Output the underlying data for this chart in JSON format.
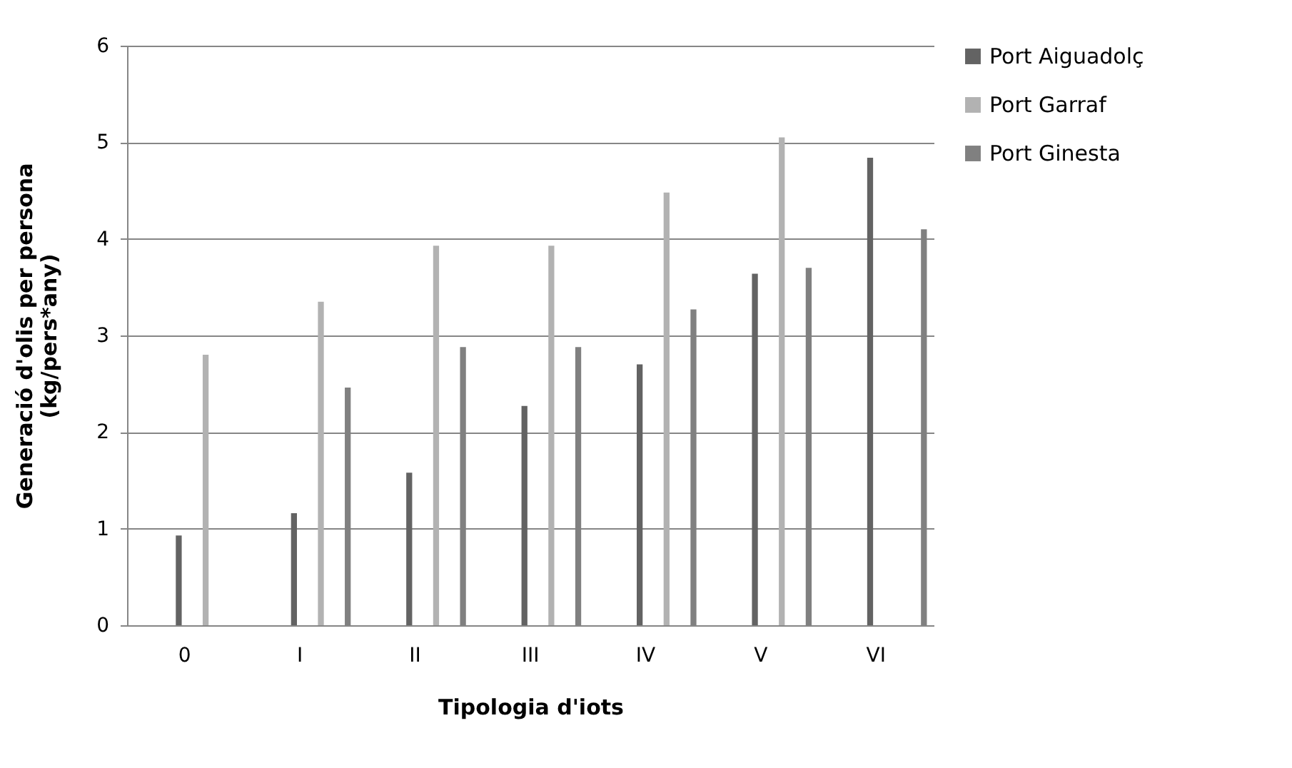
{
  "chart_data": {
    "type": "bar",
    "xlabel": "Tipologia d'iots",
    "ylabel": "Generació d'olis per persona\n(kg/pers*any)",
    "categories": [
      "0",
      "I",
      "II",
      "III",
      "IV",
      "V",
      "VI"
    ],
    "series": [
      {
        "name": "Port Aiguadolç",
        "color": "#636363",
        "values": [
          0.93,
          1.16,
          1.58,
          2.27,
          2.7,
          3.64,
          4.84
        ]
      },
      {
        "name": "Port Garraf",
        "color": "#b2b2b2",
        "values": [
          2.8,
          3.35,
          3.93,
          3.93,
          4.48,
          5.05,
          null
        ]
      },
      {
        "name": "Port Ginesta",
        "color": "#808080",
        "values": [
          null,
          2.46,
          2.88,
          2.88,
          3.27,
          3.7,
          4.1
        ]
      }
    ],
    "ylim": [
      0,
      6
    ],
    "yticks": [
      0,
      1,
      2,
      3,
      4,
      5,
      6
    ],
    "grid": "y",
    "legend": "right"
  }
}
